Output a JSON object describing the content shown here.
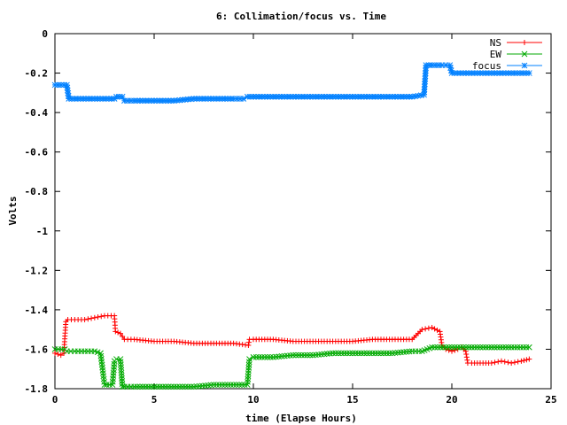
{
  "chart_data": {
    "type": "line",
    "title": "6: Collimation/focus vs. Time",
    "xlabel": "time (Elapse Hours)",
    "ylabel": "Volts",
    "xlim": [
      0,
      25
    ],
    "ylim": [
      -1.8,
      0
    ],
    "x_ticks": [
      0,
      5,
      10,
      15,
      20,
      25
    ],
    "y_ticks": [
      0,
      -0.2,
      -0.4,
      -0.6,
      -0.8,
      -1,
      -1.2,
      -1.4,
      -1.6,
      -1.8
    ],
    "grid": false,
    "legend_position": "top-right",
    "series": [
      {
        "name": "NS",
        "color": "#ff0000",
        "marker": "plus",
        "x": [
          0,
          0.3,
          0.45,
          0.55,
          0.65,
          1.0,
          1.5,
          2.0,
          2.5,
          3.0,
          3.05,
          3.3,
          3.5,
          4,
          5,
          6,
          7,
          8,
          9,
          9.75,
          9.8,
          10,
          11,
          12,
          13,
          14,
          15,
          16,
          17,
          18,
          18.5,
          19.0,
          19.4,
          19.5,
          19.7,
          20,
          20.3,
          20.5,
          20.7,
          20.8,
          21,
          22,
          22.5,
          23,
          23.5,
          23.9
        ],
        "y": [
          -1.62,
          -1.63,
          -1.62,
          -1.46,
          -1.45,
          -1.45,
          -1.45,
          -1.44,
          -1.43,
          -1.43,
          -1.51,
          -1.52,
          -1.55,
          -1.55,
          -1.56,
          -1.56,
          -1.57,
          -1.57,
          -1.57,
          -1.58,
          -1.55,
          -1.55,
          -1.55,
          -1.56,
          -1.56,
          -1.56,
          -1.56,
          -1.55,
          -1.55,
          -1.55,
          -1.5,
          -1.49,
          -1.51,
          -1.58,
          -1.6,
          -1.61,
          -1.6,
          -1.59,
          -1.61,
          -1.67,
          -1.67,
          -1.67,
          -1.66,
          -1.67,
          -1.66,
          -1.65
        ]
      },
      {
        "name": "EW",
        "color": "#00aa00",
        "marker": "x",
        "x": [
          0,
          0.5,
          0.6,
          1.0,
          1.5,
          2.0,
          2.3,
          2.5,
          2.6,
          2.9,
          3.0,
          3.1,
          3.3,
          3.4,
          3.5,
          4,
          5,
          6,
          7,
          8,
          9,
          9.7,
          9.8,
          10,
          11,
          12,
          13,
          14,
          15,
          16,
          17,
          18,
          18.5,
          19,
          20,
          21,
          22,
          23,
          23.9
        ],
        "y": [
          -1.6,
          -1.6,
          -1.61,
          -1.61,
          -1.61,
          -1.61,
          -1.62,
          -1.78,
          -1.78,
          -1.78,
          -1.66,
          -1.65,
          -1.65,
          -1.79,
          -1.79,
          -1.79,
          -1.79,
          -1.79,
          -1.79,
          -1.78,
          -1.78,
          -1.78,
          -1.65,
          -1.64,
          -1.64,
          -1.63,
          -1.63,
          -1.62,
          -1.62,
          -1.62,
          -1.62,
          -1.61,
          -1.61,
          -1.59,
          -1.59,
          -1.59,
          -1.59,
          -1.59,
          -1.59
        ]
      },
      {
        "name": "focus",
        "color": "#0080ff",
        "marker": "star",
        "x": [
          0,
          0.6,
          0.7,
          1,
          2,
          3,
          3.1,
          3.4,
          3.5,
          4,
          5,
          6,
          7,
          8,
          9,
          9.5,
          9.7,
          10,
          11,
          12,
          13,
          14,
          15,
          16,
          17,
          18,
          18.6,
          18.7,
          19,
          19.5,
          19.9,
          20.0,
          21,
          22,
          23,
          23.9
        ],
        "y": [
          -0.26,
          -0.26,
          -0.33,
          -0.33,
          -0.33,
          -0.33,
          -0.32,
          -0.32,
          -0.34,
          -0.34,
          -0.34,
          -0.34,
          -0.33,
          -0.33,
          -0.33,
          -0.33,
          -0.32,
          -0.32,
          -0.32,
          -0.32,
          -0.32,
          -0.32,
          -0.32,
          -0.32,
          -0.32,
          -0.32,
          -0.31,
          -0.16,
          -0.16,
          -0.16,
          -0.16,
          -0.2,
          -0.2,
          -0.2,
          -0.2,
          -0.2
        ]
      }
    ]
  }
}
